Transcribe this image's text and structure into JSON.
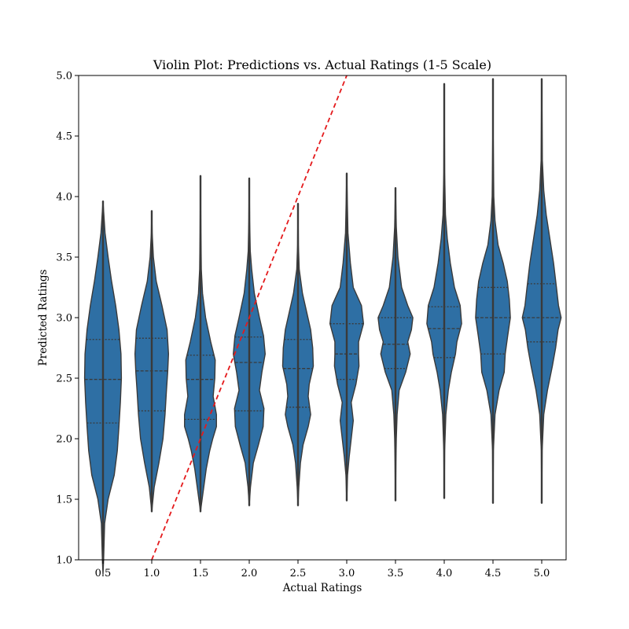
{
  "chart_data": {
    "type": "violin",
    "title": "Violin Plot: Predictions vs. Actual Ratings (1-5 Scale)",
    "xlabel": "Actual Ratings",
    "ylabel": "Predicted Ratings",
    "ylim": [
      1.0,
      5.0
    ],
    "yticks": [
      "1.0",
      "1.5",
      "2.0",
      "2.5",
      "3.0",
      "3.5",
      "4.0",
      "4.5",
      "5.0"
    ],
    "categories": [
      "0.5",
      "1.0",
      "1.5",
      "2.0",
      "2.5",
      "3.0",
      "3.5",
      "4.0",
      "4.5",
      "5.0"
    ],
    "category_values": [
      0.5,
      1.0,
      1.5,
      2.0,
      2.5,
      3.0,
      3.5,
      4.0,
      4.5,
      5.0
    ],
    "violins": [
      {
        "category": "0.5",
        "min": 0.88,
        "max": 3.96,
        "q1": 2.13,
        "median": 2.49,
        "q3": 2.82,
        "profile": [
          [
            0.88,
            0.0
          ],
          [
            1.0,
            0.03
          ],
          [
            1.3,
            0.08
          ],
          [
            1.5,
            0.25
          ],
          [
            1.6,
            0.4
          ],
          [
            1.7,
            0.55
          ],
          [
            1.9,
            0.7
          ],
          [
            2.1,
            0.78
          ],
          [
            2.3,
            0.85
          ],
          [
            2.5,
            0.9
          ],
          [
            2.7,
            0.88
          ],
          [
            2.9,
            0.78
          ],
          [
            3.1,
            0.62
          ],
          [
            3.3,
            0.42
          ],
          [
            3.5,
            0.25
          ],
          [
            3.7,
            0.1
          ],
          [
            3.96,
            0.0
          ]
        ]
      },
      {
        "category": "1.0",
        "min": 1.4,
        "max": 3.88,
        "q1": 2.23,
        "median": 2.56,
        "q3": 2.83,
        "profile": [
          [
            1.4,
            0.0
          ],
          [
            1.6,
            0.12
          ],
          [
            1.8,
            0.35
          ],
          [
            2.0,
            0.55
          ],
          [
            2.2,
            0.65
          ],
          [
            2.4,
            0.72
          ],
          [
            2.55,
            0.78
          ],
          [
            2.7,
            0.82
          ],
          [
            2.9,
            0.75
          ],
          [
            3.1,
            0.5
          ],
          [
            3.3,
            0.22
          ],
          [
            3.5,
            0.08
          ],
          [
            3.7,
            0.02
          ],
          [
            3.88,
            0.0
          ]
        ]
      },
      {
        "category": "1.5",
        "min": 1.4,
        "max": 4.17,
        "q1": 2.16,
        "median": 2.49,
        "q3": 2.69,
        "profile": [
          [
            1.4,
            0.0
          ],
          [
            1.55,
            0.12
          ],
          [
            1.75,
            0.28
          ],
          [
            1.9,
            0.45
          ],
          [
            2.0,
            0.6
          ],
          [
            2.1,
            0.78
          ],
          [
            2.2,
            0.78
          ],
          [
            2.35,
            0.62
          ],
          [
            2.5,
            0.7
          ],
          [
            2.65,
            0.72
          ],
          [
            2.8,
            0.5
          ],
          [
            3.0,
            0.25
          ],
          [
            3.2,
            0.1
          ],
          [
            3.4,
            0.04
          ],
          [
            3.7,
            0.02
          ],
          [
            4.17,
            0.0
          ]
        ]
      },
      {
        "category": "2.0",
        "min": 1.45,
        "max": 4.15,
        "q1": 2.23,
        "median": 2.63,
        "q3": 2.84,
        "profile": [
          [
            1.45,
            0.0
          ],
          [
            1.6,
            0.06
          ],
          [
            1.8,
            0.2
          ],
          [
            1.95,
            0.45
          ],
          [
            2.1,
            0.68
          ],
          [
            2.25,
            0.72
          ],
          [
            2.4,
            0.5
          ],
          [
            2.55,
            0.62
          ],
          [
            2.7,
            0.78
          ],
          [
            2.85,
            0.7
          ],
          [
            3.0,
            0.5
          ],
          [
            3.2,
            0.25
          ],
          [
            3.4,
            0.12
          ],
          [
            3.55,
            0.05
          ],
          [
            3.8,
            0.02
          ],
          [
            4.15,
            0.0
          ]
        ]
      },
      {
        "category": "2.5",
        "min": 1.45,
        "max": 3.94,
        "q1": 2.26,
        "median": 2.58,
        "q3": 2.82,
        "profile": [
          [
            1.45,
            0.0
          ],
          [
            1.6,
            0.04
          ],
          [
            1.8,
            0.12
          ],
          [
            1.95,
            0.25
          ],
          [
            2.1,
            0.5
          ],
          [
            2.2,
            0.62
          ],
          [
            2.35,
            0.5
          ],
          [
            2.45,
            0.55
          ],
          [
            2.6,
            0.75
          ],
          [
            2.75,
            0.72
          ],
          [
            2.9,
            0.62
          ],
          [
            3.05,
            0.42
          ],
          [
            3.2,
            0.22
          ],
          [
            3.4,
            0.06
          ],
          [
            3.6,
            0.02
          ],
          [
            3.94,
            0.0
          ]
        ]
      },
      {
        "category": "3.0",
        "min": 1.49,
        "max": 4.19,
        "q1": 2.49,
        "median": 2.7,
        "q3": 2.95,
        "profile": [
          [
            1.49,
            0.0
          ],
          [
            1.7,
            0.04
          ],
          [
            1.85,
            0.12
          ],
          [
            2.0,
            0.22
          ],
          [
            2.15,
            0.32
          ],
          [
            2.3,
            0.22
          ],
          [
            2.45,
            0.45
          ],
          [
            2.6,
            0.6
          ],
          [
            2.7,
            0.58
          ],
          [
            2.8,
            0.58
          ],
          [
            2.95,
            0.82
          ],
          [
            3.1,
            0.72
          ],
          [
            3.25,
            0.32
          ],
          [
            3.45,
            0.18
          ],
          [
            3.7,
            0.06
          ],
          [
            4.19,
            0.0
          ]
        ]
      },
      {
        "category": "3.5",
        "min": 1.49,
        "max": 4.07,
        "q1": 2.58,
        "median": 2.78,
        "q3": 3.0,
        "profile": [
          [
            1.49,
            0.0
          ],
          [
            1.8,
            0.02
          ],
          [
            2.0,
            0.04
          ],
          [
            2.2,
            0.08
          ],
          [
            2.4,
            0.18
          ],
          [
            2.55,
            0.5
          ],
          [
            2.7,
            0.72
          ],
          [
            2.8,
            0.6
          ],
          [
            2.9,
            0.78
          ],
          [
            3.0,
            0.85
          ],
          [
            3.1,
            0.6
          ],
          [
            3.25,
            0.3
          ],
          [
            3.5,
            0.12
          ],
          [
            3.75,
            0.04
          ],
          [
            4.07,
            0.0
          ]
        ]
      },
      {
        "category": "4.0",
        "min": 1.51,
        "max": 4.93,
        "q1": 2.67,
        "median": 2.91,
        "q3": 3.09,
        "profile": [
          [
            1.51,
            0.0
          ],
          [
            1.9,
            0.02
          ],
          [
            2.2,
            0.08
          ],
          [
            2.4,
            0.2
          ],
          [
            2.55,
            0.35
          ],
          [
            2.7,
            0.55
          ],
          [
            2.8,
            0.62
          ],
          [
            2.95,
            0.85
          ],
          [
            3.1,
            0.78
          ],
          [
            3.25,
            0.5
          ],
          [
            3.45,
            0.3
          ],
          [
            3.65,
            0.15
          ],
          [
            3.85,
            0.06
          ],
          [
            4.2,
            0.02
          ],
          [
            4.93,
            0.0
          ]
        ]
      },
      {
        "category": "4.5",
        "min": 1.47,
        "max": 4.97,
        "q1": 2.7,
        "median": 3.0,
        "q3": 3.25,
        "profile": [
          [
            1.47,
            0.0
          ],
          [
            1.9,
            0.02
          ],
          [
            2.2,
            0.1
          ],
          [
            2.4,
            0.3
          ],
          [
            2.55,
            0.55
          ],
          [
            2.7,
            0.6
          ],
          [
            2.85,
            0.72
          ],
          [
            3.0,
            0.85
          ],
          [
            3.15,
            0.8
          ],
          [
            3.3,
            0.7
          ],
          [
            3.45,
            0.5
          ],
          [
            3.6,
            0.25
          ],
          [
            3.8,
            0.1
          ],
          [
            4.0,
            0.04
          ],
          [
            4.5,
            0.01
          ],
          [
            4.97,
            0.0
          ]
        ]
      },
      {
        "category": "5.0",
        "min": 1.47,
        "max": 4.97,
        "q1": 2.8,
        "median": 3.0,
        "q3": 3.28,
        "profile": [
          [
            1.47,
            0.0
          ],
          [
            1.9,
            0.02
          ],
          [
            2.2,
            0.1
          ],
          [
            2.4,
            0.28
          ],
          [
            2.6,
            0.52
          ],
          [
            2.75,
            0.68
          ],
          [
            2.9,
            0.8
          ],
          [
            3.0,
            0.95
          ],
          [
            3.1,
            0.82
          ],
          [
            3.25,
            0.72
          ],
          [
            3.45,
            0.58
          ],
          [
            3.65,
            0.4
          ],
          [
            3.85,
            0.22
          ],
          [
            4.05,
            0.1
          ],
          [
            4.3,
            0.03
          ],
          [
            4.97,
            0.0
          ]
        ]
      }
    ],
    "reference_line": {
      "style": "dashed",
      "from": [
        1.0,
        1.0
      ],
      "to": [
        3.0,
        5.0
      ]
    },
    "colors": {
      "violin_fill": "#2e6fa4",
      "violin_edge": "#3a3a3a",
      "reference_line": "#e41a1c"
    },
    "grid": false,
    "legend": "none"
  }
}
